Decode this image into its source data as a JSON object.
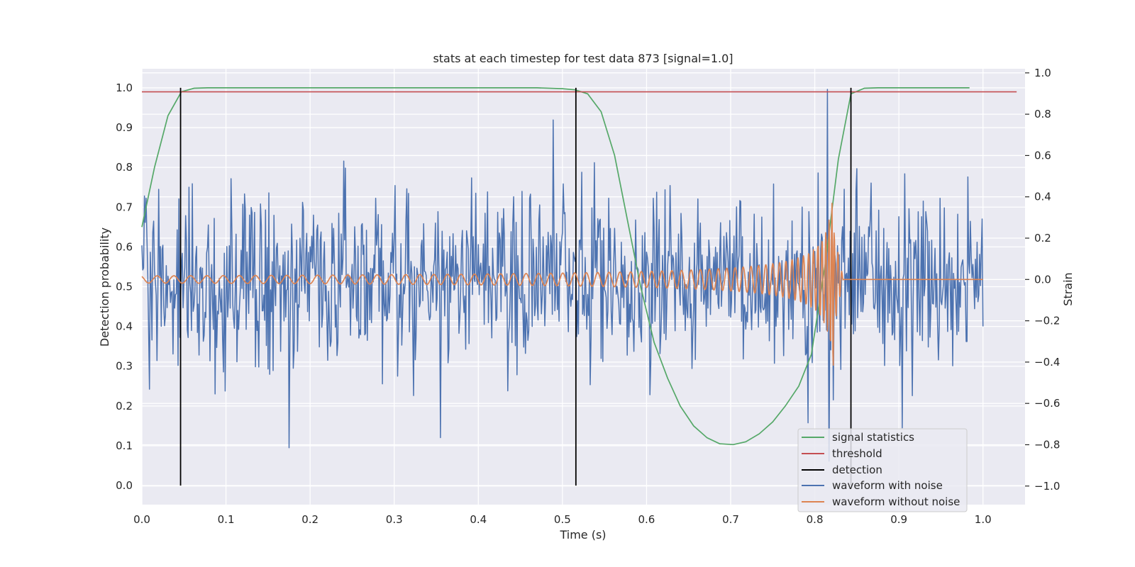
{
  "chart_data": {
    "type": "line",
    "title": "stats at each timestep for test data 873 [signal=1.0]",
    "xlabel": "Time (s)",
    "ylabel": "Detection probability",
    "y2label": "Strain",
    "xlim": [
      0.0,
      1.05
    ],
    "ylim": [
      -0.048,
      1.048
    ],
    "y2lim": [
      -1.09,
      1.02
    ],
    "xticks": [
      "0.0",
      "0.1",
      "0.2",
      "0.3",
      "0.4",
      "0.5",
      "0.6",
      "0.7",
      "0.8",
      "0.9",
      "1.0"
    ],
    "yticks": [
      "0.0",
      "0.1",
      "0.2",
      "0.3",
      "0.4",
      "0.5",
      "0.6",
      "0.7",
      "0.8",
      "0.9",
      "1.0"
    ],
    "y2ticks": [
      "−1.0",
      "−0.8",
      "−0.6",
      "−0.4",
      "−0.2",
      "0.0",
      "0.2",
      "0.4",
      "0.6",
      "0.8",
      "1.0"
    ],
    "grid": true,
    "legend_position": "bottom-right",
    "colors": {
      "signal": "#55a868",
      "threshold": "#c44e52",
      "detection": "#000000",
      "noisy": "#4c72b0",
      "clean": "#dd8452",
      "background": "#eaeaf2",
      "grid": "#ffffff"
    },
    "threshold": 0.99,
    "threshold_x": [
      0.0,
      1.04
    ],
    "detections": [
      0.046,
      0.516,
      0.843
    ],
    "signal_statistics": {
      "name": "signal statistics",
      "x": [
        0.0,
        0.015,
        0.031,
        0.047,
        0.062,
        0.078,
        0.094,
        0.2,
        0.3,
        0.4,
        0.47,
        0.5,
        0.515,
        0.53,
        0.546,
        0.562,
        0.578,
        0.593,
        0.609,
        0.625,
        0.64,
        0.656,
        0.672,
        0.687,
        0.703,
        0.718,
        0.734,
        0.75,
        0.765,
        0.781,
        0.796,
        0.812,
        0.828,
        0.843,
        0.859,
        0.875,
        0.9,
        0.95,
        0.984
      ],
      "y": [
        0.65,
        0.8,
        0.93,
        0.99,
        0.999,
        1.0,
        1.0,
        1.0,
        1.0,
        1.0,
        1.0,
        0.998,
        0.995,
        0.985,
        0.94,
        0.83,
        0.66,
        0.5,
        0.36,
        0.27,
        0.2,
        0.15,
        0.12,
        0.105,
        0.103,
        0.11,
        0.13,
        0.16,
        0.2,
        0.25,
        0.33,
        0.55,
        0.82,
        0.985,
        0.999,
        1.0,
        1.0,
        1.0,
        1.0
      ]
    },
    "legend": [
      "signal statistics",
      "threshold",
      "detection",
      "waveform with noise",
      "waveform without noise"
    ]
  }
}
